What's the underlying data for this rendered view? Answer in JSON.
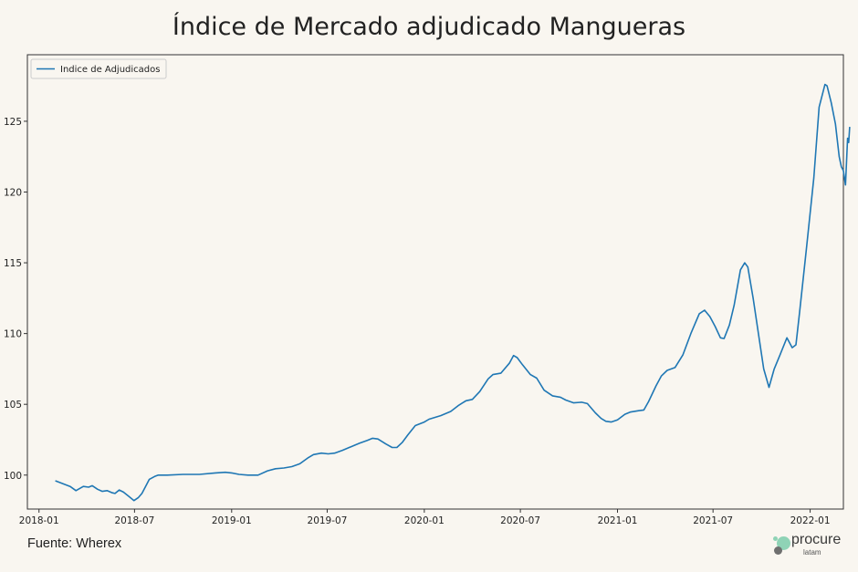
{
  "title": "Índice de Mercado adjudicado Mangueras",
  "source": "Fuente: Wherex",
  "logo": {
    "brand": "procure",
    "sub": "latam",
    "colors": [
      "#8fd3b6",
      "#6f6f6f"
    ]
  },
  "colors": {
    "line": "#1f77b4",
    "background": "#f9f6f0",
    "axis": "#333333"
  },
  "chart_data": {
    "type": "line",
    "title": "Índice de Mercado adjudicado Mangueras",
    "xlabel": "",
    "ylabel": "",
    "xlim": [
      "2017-12-10",
      "2022-03-05"
    ],
    "ylim": [
      97.6,
      129.7
    ],
    "grid": false,
    "legend_position": "upper left",
    "x_ticks": [
      "2018-01",
      "2018-07",
      "2019-01",
      "2019-07",
      "2020-01",
      "2020-07",
      "2021-01",
      "2021-07",
      "2022-01"
    ],
    "y_ticks": [
      100,
      105,
      110,
      115,
      120,
      125
    ],
    "series": [
      {
        "name": "Indice de Adjudicados",
        "color": "#1f77b4",
        "points": [
          [
            "2018-02-01",
            99.6
          ],
          [
            "2018-02-15",
            99.4
          ],
          [
            "2018-03-01",
            99.2
          ],
          [
            "2018-03-12",
            98.9
          ],
          [
            "2018-03-26",
            99.2
          ],
          [
            "2018-04-05",
            99.15
          ],
          [
            "2018-04-12",
            99.25
          ],
          [
            "2018-04-22",
            99.0
          ],
          [
            "2018-05-01",
            98.85
          ],
          [
            "2018-05-10",
            98.9
          ],
          [
            "2018-05-20",
            98.75
          ],
          [
            "2018-05-25",
            98.7
          ],
          [
            "2018-06-02",
            98.95
          ],
          [
            "2018-06-10",
            98.8
          ],
          [
            "2018-06-20",
            98.5
          ],
          [
            "2018-06-30",
            98.2
          ],
          [
            "2018-07-08",
            98.4
          ],
          [
            "2018-07-15",
            98.7
          ],
          [
            "2018-07-22",
            99.2
          ],
          [
            "2018-07-29",
            99.7
          ],
          [
            "2018-08-08",
            99.9
          ],
          [
            "2018-08-15",
            100.0
          ],
          [
            "2018-09-01",
            100.0
          ],
          [
            "2018-10-01",
            100.05
          ],
          [
            "2018-11-01",
            100.05
          ],
          [
            "2018-12-01",
            100.15
          ],
          [
            "2018-12-20",
            100.2
          ],
          [
            "2019-01-01",
            100.15
          ],
          [
            "2019-01-15",
            100.05
          ],
          [
            "2019-02-01",
            100.0
          ],
          [
            "2019-02-20",
            100.0
          ],
          [
            "2019-03-10",
            100.3
          ],
          [
            "2019-03-25",
            100.45
          ],
          [
            "2019-04-10",
            100.5
          ],
          [
            "2019-04-25",
            100.6
          ],
          [
            "2019-05-10",
            100.8
          ],
          [
            "2019-05-25",
            101.2
          ],
          [
            "2019-06-05",
            101.45
          ],
          [
            "2019-06-20",
            101.55
          ],
          [
            "2019-07-03",
            101.5
          ],
          [
            "2019-07-15",
            101.55
          ],
          [
            "2019-07-30",
            101.75
          ],
          [
            "2019-08-15",
            102.0
          ],
          [
            "2019-08-31",
            102.25
          ],
          [
            "2019-09-15",
            102.45
          ],
          [
            "2019-09-25",
            102.6
          ],
          [
            "2019-10-05",
            102.55
          ],
          [
            "2019-10-20",
            102.2
          ],
          [
            "2019-11-01",
            101.95
          ],
          [
            "2019-11-10",
            101.95
          ],
          [
            "2019-11-20",
            102.3
          ],
          [
            "2019-12-01",
            102.85
          ],
          [
            "2019-12-15",
            103.5
          ],
          [
            "2020-01-01",
            103.75
          ],
          [
            "2020-01-10",
            103.95
          ],
          [
            "2020-02-01",
            104.2
          ],
          [
            "2020-02-20",
            104.5
          ],
          [
            "2020-03-05",
            104.9
          ],
          [
            "2020-03-20",
            105.25
          ],
          [
            "2020-04-01",
            105.35
          ],
          [
            "2020-04-15",
            105.9
          ],
          [
            "2020-05-01",
            106.8
          ],
          [
            "2020-05-10",
            107.1
          ],
          [
            "2020-05-25",
            107.2
          ],
          [
            "2020-06-10",
            107.9
          ],
          [
            "2020-06-18",
            108.45
          ],
          [
            "2020-06-25",
            108.3
          ],
          [
            "2020-07-05",
            107.8
          ],
          [
            "2020-07-20",
            107.1
          ],
          [
            "2020-08-01",
            106.85
          ],
          [
            "2020-08-15",
            106.0
          ],
          [
            "2020-08-31",
            105.6
          ],
          [
            "2020-09-15",
            105.5
          ],
          [
            "2020-09-25",
            105.3
          ],
          [
            "2020-10-10",
            105.1
          ],
          [
            "2020-10-25",
            105.15
          ],
          [
            "2020-11-05",
            105.05
          ],
          [
            "2020-11-20",
            104.4
          ],
          [
            "2020-12-01",
            104.0
          ],
          [
            "2020-12-10",
            103.8
          ],
          [
            "2020-12-20",
            103.75
          ],
          [
            "2021-01-01",
            103.9
          ],
          [
            "2021-01-15",
            104.3
          ],
          [
            "2021-01-25",
            104.45
          ],
          [
            "2021-02-10",
            104.55
          ],
          [
            "2021-02-20",
            104.6
          ],
          [
            "2021-03-01",
            105.2
          ],
          [
            "2021-03-15",
            106.3
          ],
          [
            "2021-03-25",
            107.0
          ],
          [
            "2021-04-05",
            107.4
          ],
          [
            "2021-04-20",
            107.6
          ],
          [
            "2021-05-05",
            108.5
          ],
          [
            "2021-05-20",
            110.0
          ],
          [
            "2021-06-05",
            111.4
          ],
          [
            "2021-06-15",
            111.65
          ],
          [
            "2021-06-25",
            111.2
          ],
          [
            "2021-07-05",
            110.5
          ],
          [
            "2021-07-15",
            109.7
          ],
          [
            "2021-07-22",
            109.65
          ],
          [
            "2021-08-01",
            110.6
          ],
          [
            "2021-08-10",
            112.0
          ],
          [
            "2021-08-22",
            114.5
          ],
          [
            "2021-08-30",
            115.0
          ],
          [
            "2021-09-05",
            114.7
          ],
          [
            "2021-09-15",
            112.5
          ],
          [
            "2021-09-25",
            110.0
          ],
          [
            "2021-10-05",
            107.5
          ],
          [
            "2021-10-15",
            106.2
          ],
          [
            "2021-10-25",
            107.5
          ],
          [
            "2021-11-05",
            108.5
          ],
          [
            "2021-11-18",
            109.7
          ],
          [
            "2021-11-28",
            109.0
          ],
          [
            "2021-12-05",
            109.2
          ],
          [
            "2021-12-12",
            111.5
          ],
          [
            "2021-12-25",
            116.0
          ],
          [
            "2022-01-08",
            121.0
          ],
          [
            "2022-01-18",
            126.0
          ],
          [
            "2022-01-25",
            127.0
          ],
          [
            "2022-01-29",
            127.6
          ],
          [
            "2022-02-02",
            127.5
          ],
          [
            "2022-02-10",
            126.3
          ],
          [
            "2022-02-18",
            124.8
          ],
          [
            "2022-02-25",
            122.5
          ],
          [
            "2022-03-01",
            121.8
          ],
          [
            "2022-03-05",
            121.5
          ],
          [
            "2022-03-09",
            120.5
          ],
          [
            "2022-03-13",
            123.8
          ],
          [
            "2022-03-15",
            123.5
          ],
          [
            "2022-03-17",
            124.6
          ]
        ]
      }
    ]
  }
}
